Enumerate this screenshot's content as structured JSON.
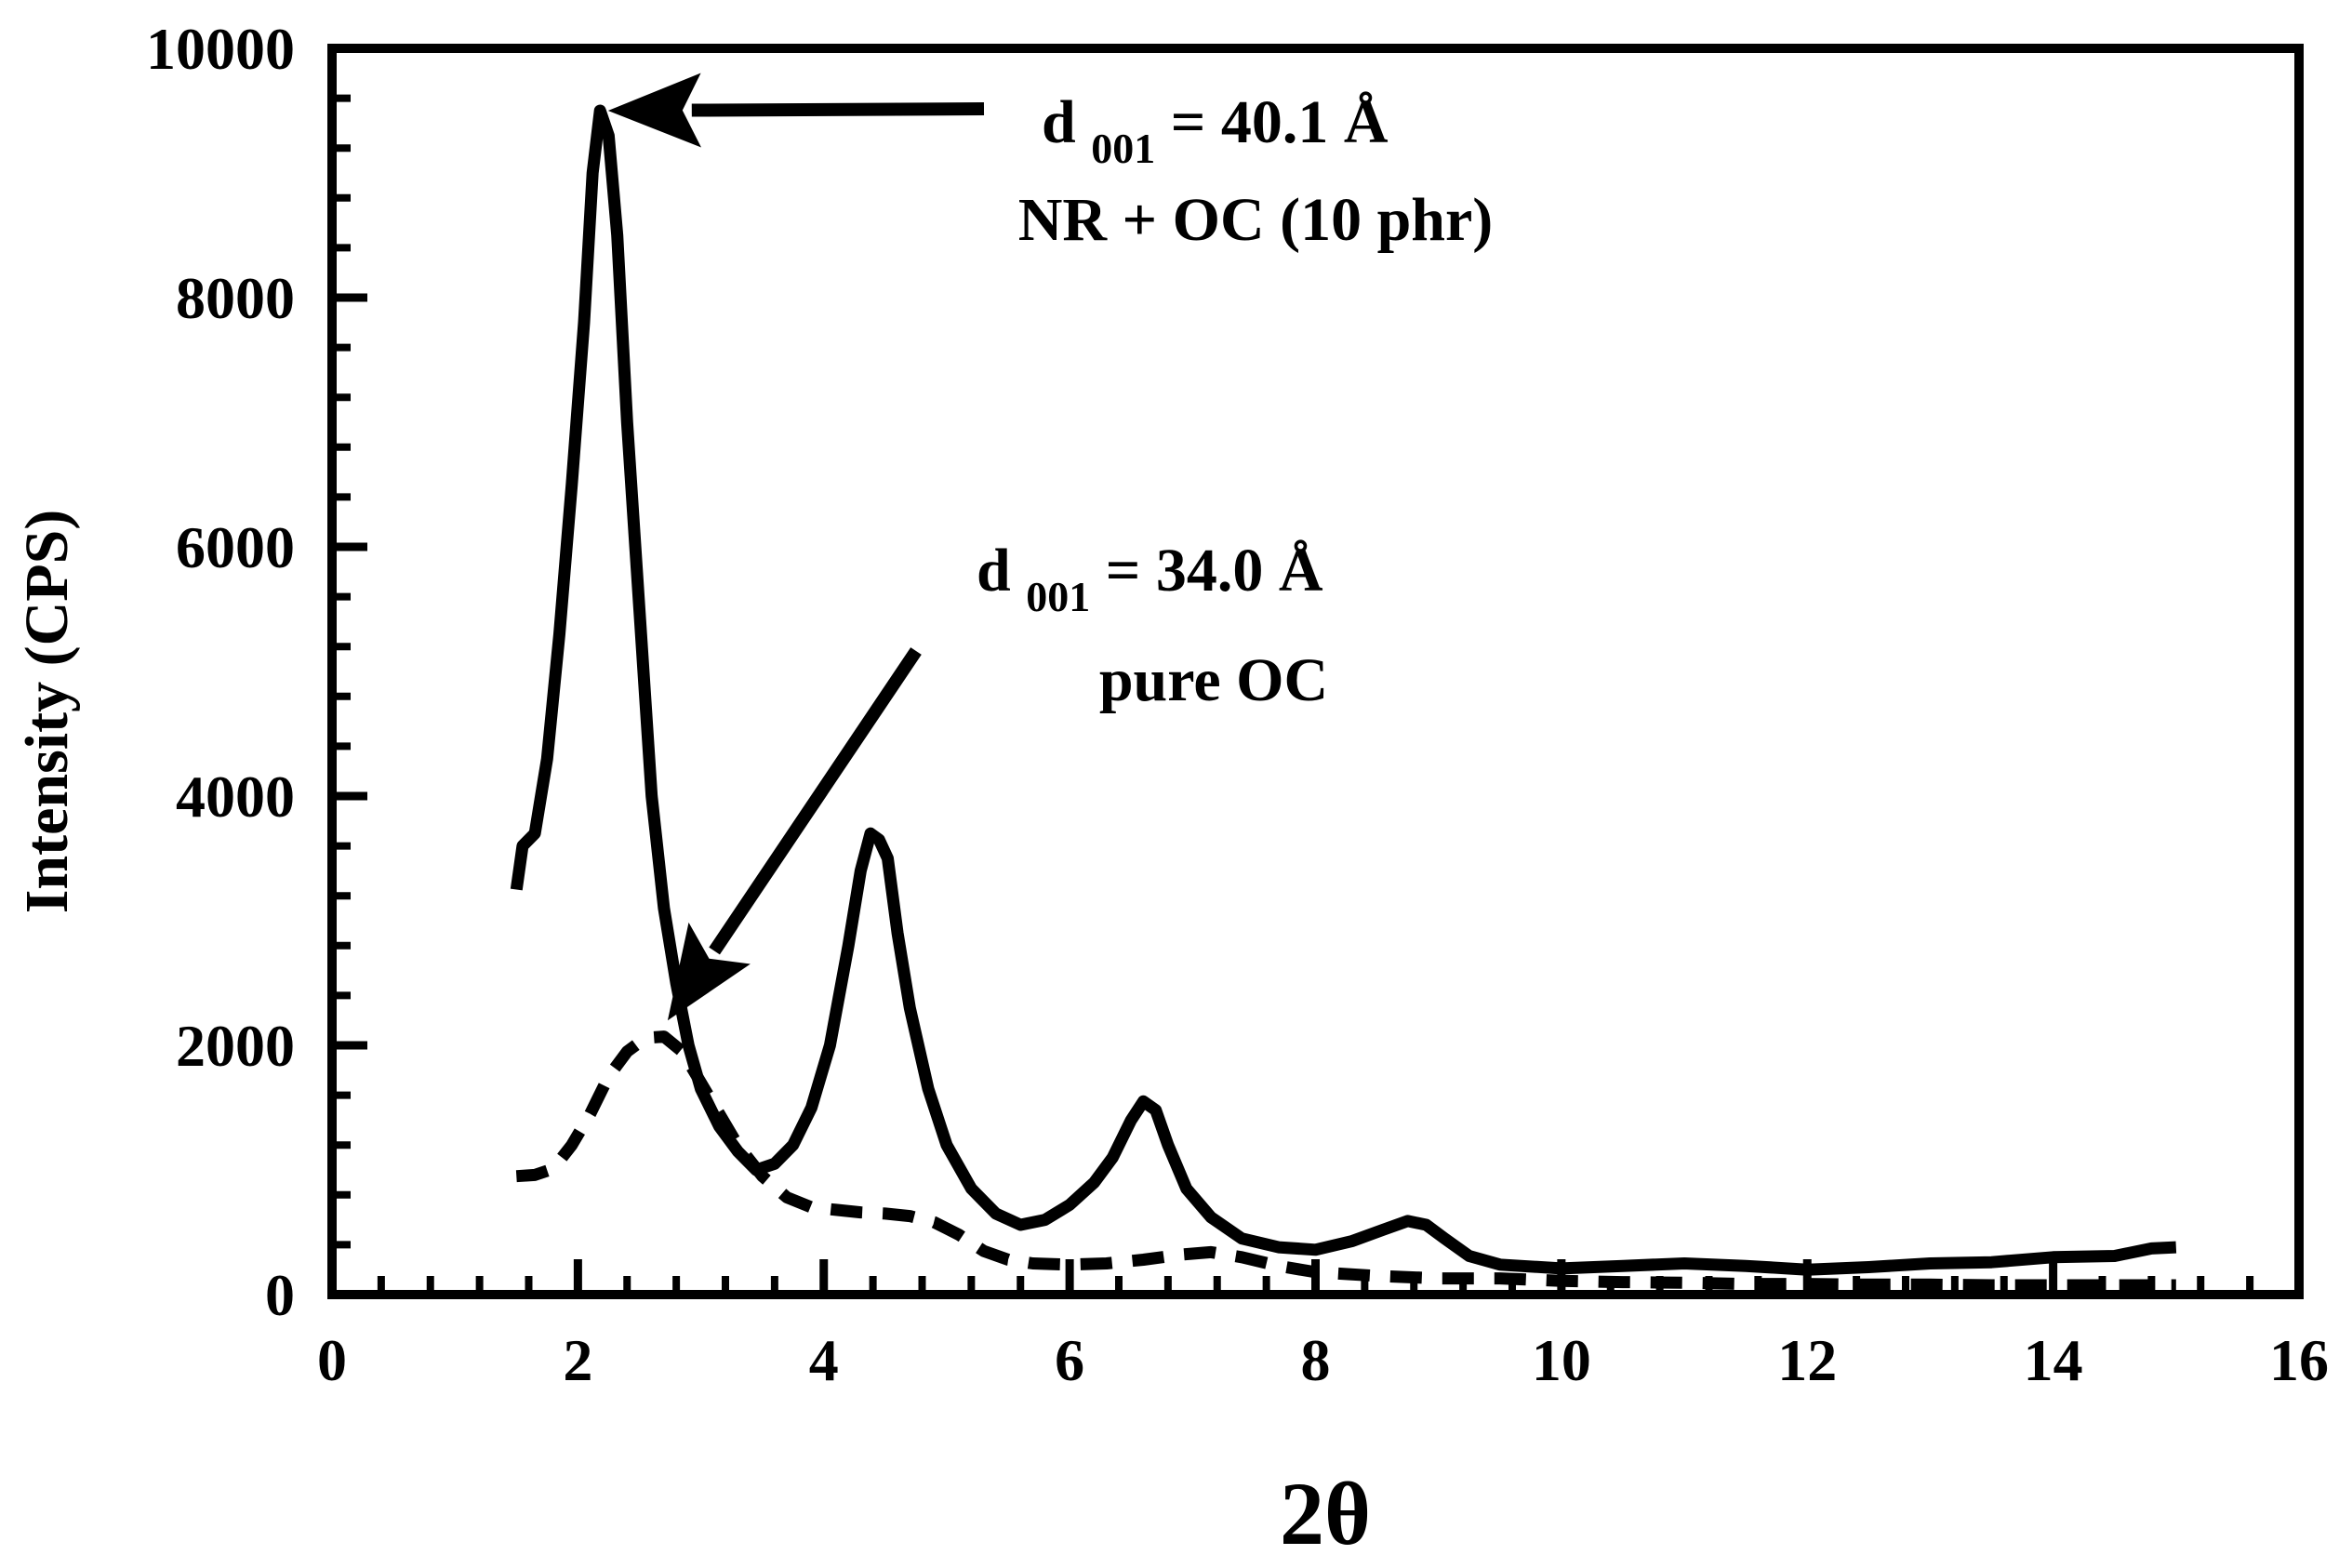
{
  "chart_data": {
    "type": "line",
    "title": "",
    "xlabel": "2θ",
    "ylabel": "Intensity (CPS)",
    "xlim": [
      0,
      16
    ],
    "ylim": [
      0,
      10000
    ],
    "xticks": [
      0,
      2,
      4,
      6,
      8,
      10,
      12,
      14,
      16
    ],
    "yticks": [
      0,
      2000,
      4000,
      6000,
      8000,
      10000
    ],
    "x_minor_step": 0.4,
    "y_minor_step": 400,
    "grid": false,
    "legend": null,
    "series": [
      {
        "name": "NR + OC (10 phr)",
        "style": "solid",
        "color": "#000000",
        "points": [
          [
            1.5,
            3250
          ],
          [
            1.55,
            3600
          ],
          [
            1.65,
            3700
          ],
          [
            1.75,
            4300
          ],
          [
            1.85,
            5300
          ],
          [
            1.95,
            6500
          ],
          [
            2.05,
            7800
          ],
          [
            2.12,
            9000
          ],
          [
            2.18,
            9500
          ],
          [
            2.25,
            9300
          ],
          [
            2.32,
            8500
          ],
          [
            2.4,
            7000
          ],
          [
            2.5,
            5500
          ],
          [
            2.6,
            4000
          ],
          [
            2.7,
            3100
          ],
          [
            2.8,
            2500
          ],
          [
            2.9,
            2000
          ],
          [
            3.0,
            1650
          ],
          [
            3.15,
            1350
          ],
          [
            3.3,
            1150
          ],
          [
            3.45,
            1000
          ],
          [
            3.6,
            1050
          ],
          [
            3.75,
            1200
          ],
          [
            3.9,
            1500
          ],
          [
            4.05,
            2000
          ],
          [
            4.2,
            2800
          ],
          [
            4.3,
            3400
          ],
          [
            4.38,
            3700
          ],
          [
            4.45,
            3650
          ],
          [
            4.52,
            3500
          ],
          [
            4.6,
            2900
          ],
          [
            4.7,
            2300
          ],
          [
            4.85,
            1650
          ],
          [
            5.0,
            1200
          ],
          [
            5.2,
            850
          ],
          [
            5.4,
            650
          ],
          [
            5.6,
            560
          ],
          [
            5.8,
            600
          ],
          [
            6.0,
            720
          ],
          [
            6.2,
            900
          ],
          [
            6.35,
            1100
          ],
          [
            6.5,
            1400
          ],
          [
            6.6,
            1550
          ],
          [
            6.7,
            1480
          ],
          [
            6.8,
            1200
          ],
          [
            6.95,
            850
          ],
          [
            7.15,
            620
          ],
          [
            7.4,
            450
          ],
          [
            7.7,
            380
          ],
          [
            8.0,
            360
          ],
          [
            8.3,
            430
          ],
          [
            8.55,
            520
          ],
          [
            8.75,
            590
          ],
          [
            8.9,
            560
          ],
          [
            9.05,
            450
          ],
          [
            9.25,
            310
          ],
          [
            9.5,
            240
          ],
          [
            10.0,
            210
          ],
          [
            10.5,
            230
          ],
          [
            11.0,
            250
          ],
          [
            11.5,
            230
          ],
          [
            12.0,
            200
          ],
          [
            12.5,
            220
          ],
          [
            13.0,
            250
          ],
          [
            13.5,
            260
          ],
          [
            14.0,
            300
          ],
          [
            14.5,
            310
          ],
          [
            14.8,
            370
          ],
          [
            15.0,
            380
          ]
        ]
      },
      {
        "name": "pure OC",
        "style": "dashed",
        "color": "#000000",
        "points": [
          [
            1.5,
            950
          ],
          [
            1.65,
            960
          ],
          [
            1.8,
            1010
          ],
          [
            1.95,
            1200
          ],
          [
            2.1,
            1450
          ],
          [
            2.25,
            1750
          ],
          [
            2.4,
            1950
          ],
          [
            2.55,
            2060
          ],
          [
            2.7,
            2070
          ],
          [
            2.85,
            1950
          ],
          [
            3.0,
            1700
          ],
          [
            3.15,
            1450
          ],
          [
            3.3,
            1200
          ],
          [
            3.5,
            950
          ],
          [
            3.7,
            780
          ],
          [
            3.9,
            700
          ],
          [
            4.1,
            680
          ],
          [
            4.3,
            660
          ],
          [
            4.5,
            650
          ],
          [
            4.7,
            630
          ],
          [
            4.9,
            580
          ],
          [
            5.1,
            480
          ],
          [
            5.3,
            350
          ],
          [
            5.5,
            280
          ],
          [
            5.7,
            250
          ],
          [
            6.0,
            240
          ],
          [
            6.3,
            250
          ],
          [
            6.6,
            280
          ],
          [
            6.9,
            320
          ],
          [
            7.15,
            340
          ],
          [
            7.4,
            300
          ],
          [
            7.7,
            230
          ],
          [
            8.0,
            180
          ],
          [
            8.5,
            150
          ],
          [
            9.0,
            130
          ],
          [
            9.5,
            130
          ],
          [
            10.0,
            110
          ],
          [
            10.5,
            100
          ],
          [
            11.0,
            95
          ],
          [
            11.5,
            85
          ],
          [
            12.0,
            85
          ],
          [
            12.5,
            80
          ],
          [
            13.0,
            80
          ],
          [
            13.5,
            75
          ],
          [
            14.0,
            75
          ],
          [
            14.5,
            75
          ],
          [
            15.0,
            75
          ]
        ]
      }
    ],
    "annotations": [
      {
        "name": "nr-oc-peak",
        "label_main": "d",
        "label_sub": "001",
        "label_value": " = 40.1 Å",
        "label_line2": "NR + OC (10 phr)",
        "arrow_to": [
          2.2,
          9500
        ]
      },
      {
        "name": "pure-oc-peak",
        "label_main": "d",
        "label_sub": "001",
        "label_value": " = 34.0 Å",
        "label_line2": "pure OC",
        "arrow_to": [
          2.7,
          2200
        ]
      }
    ]
  }
}
